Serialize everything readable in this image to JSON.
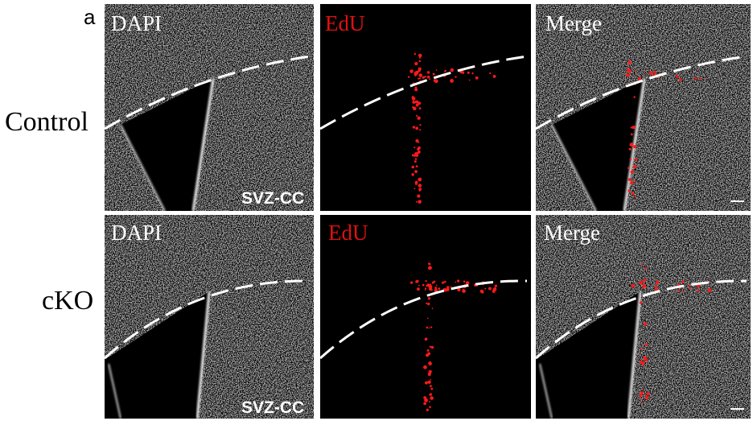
{
  "panel_label": "a",
  "columns": [
    "DAPI",
    "EdU",
    "Merge"
  ],
  "rows": [
    {
      "label": "Control",
      "region": "SVZ-CC"
    },
    {
      "label": "cKO",
      "region": "SVZ-CC"
    }
  ]
}
